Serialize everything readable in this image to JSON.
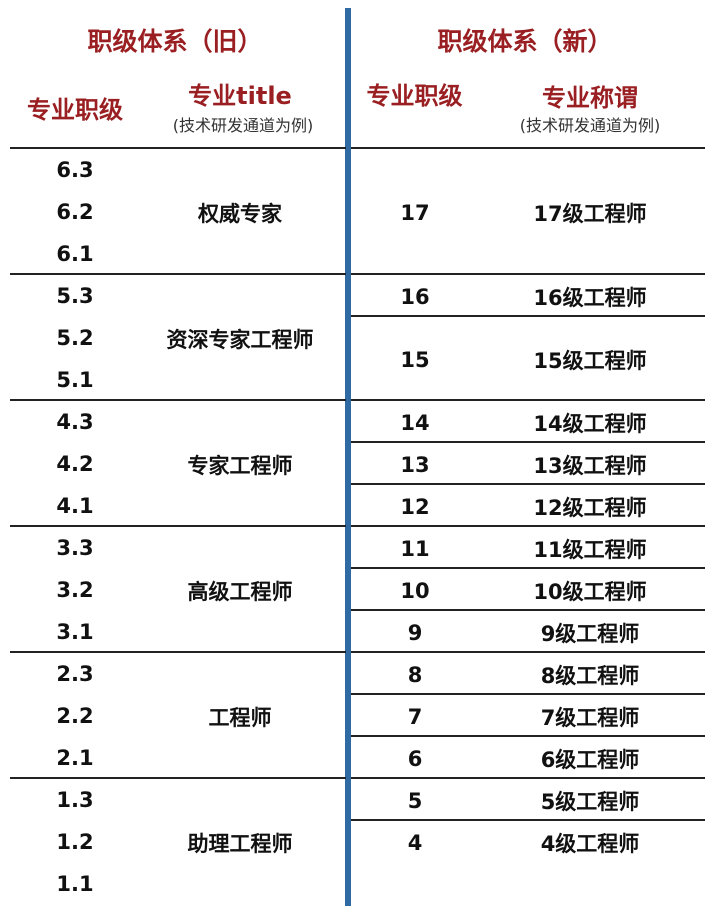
{
  "old": {
    "title": "职级体系（旧）",
    "col_level": "专业职级",
    "col_title": "专业title",
    "col_title_note": "(技术研发通道为例)",
    "groups": [
      {
        "levels": [
          "6.3",
          "6.2",
          "6.1"
        ],
        "title": "权威专家"
      },
      {
        "levels": [
          "5.3",
          "5.2",
          "5.1"
        ],
        "title": "资深专家工程师"
      },
      {
        "levels": [
          "4.3",
          "4.2",
          "4.1"
        ],
        "title": "专家工程师"
      },
      {
        "levels": [
          "3.3",
          "3.2",
          "3.1"
        ],
        "title": "高级工程师"
      },
      {
        "levels": [
          "2.3",
          "2.2",
          "2.1"
        ],
        "title": "工程师"
      },
      {
        "levels": [
          "1.3",
          "1.2",
          "1.1"
        ],
        "title": "助理工程师"
      }
    ]
  },
  "new": {
    "title": "职级体系（新）",
    "col_level": "专业职级",
    "col_title": "专业称谓",
    "col_title_note": "(技术研发通道为例)",
    "rows": [
      {
        "level": "17",
        "title": "17级工程师"
      },
      {
        "level": "16",
        "title": "16级工程师"
      },
      {
        "level": "15",
        "title": "15级工程师"
      },
      {
        "level": "14",
        "title": "14级工程师"
      },
      {
        "level": "13",
        "title": "13级工程师"
      },
      {
        "level": "12",
        "title": "12级工程师"
      },
      {
        "level": "11",
        "title": "11级工程师"
      },
      {
        "level": "10",
        "title": "10级工程师"
      },
      {
        "level": "9",
        "title": "9级工程师"
      },
      {
        "level": "8",
        "title": "8级工程师"
      },
      {
        "level": "7",
        "title": "7级工程师"
      },
      {
        "level": "6",
        "title": "6级工程师"
      },
      {
        "level": "5",
        "title": "5级工程师"
      },
      {
        "level": "4",
        "title": "4级工程师"
      }
    ]
  },
  "colors": {
    "header": "#9a1f22",
    "divider": "#2f6aa3"
  }
}
